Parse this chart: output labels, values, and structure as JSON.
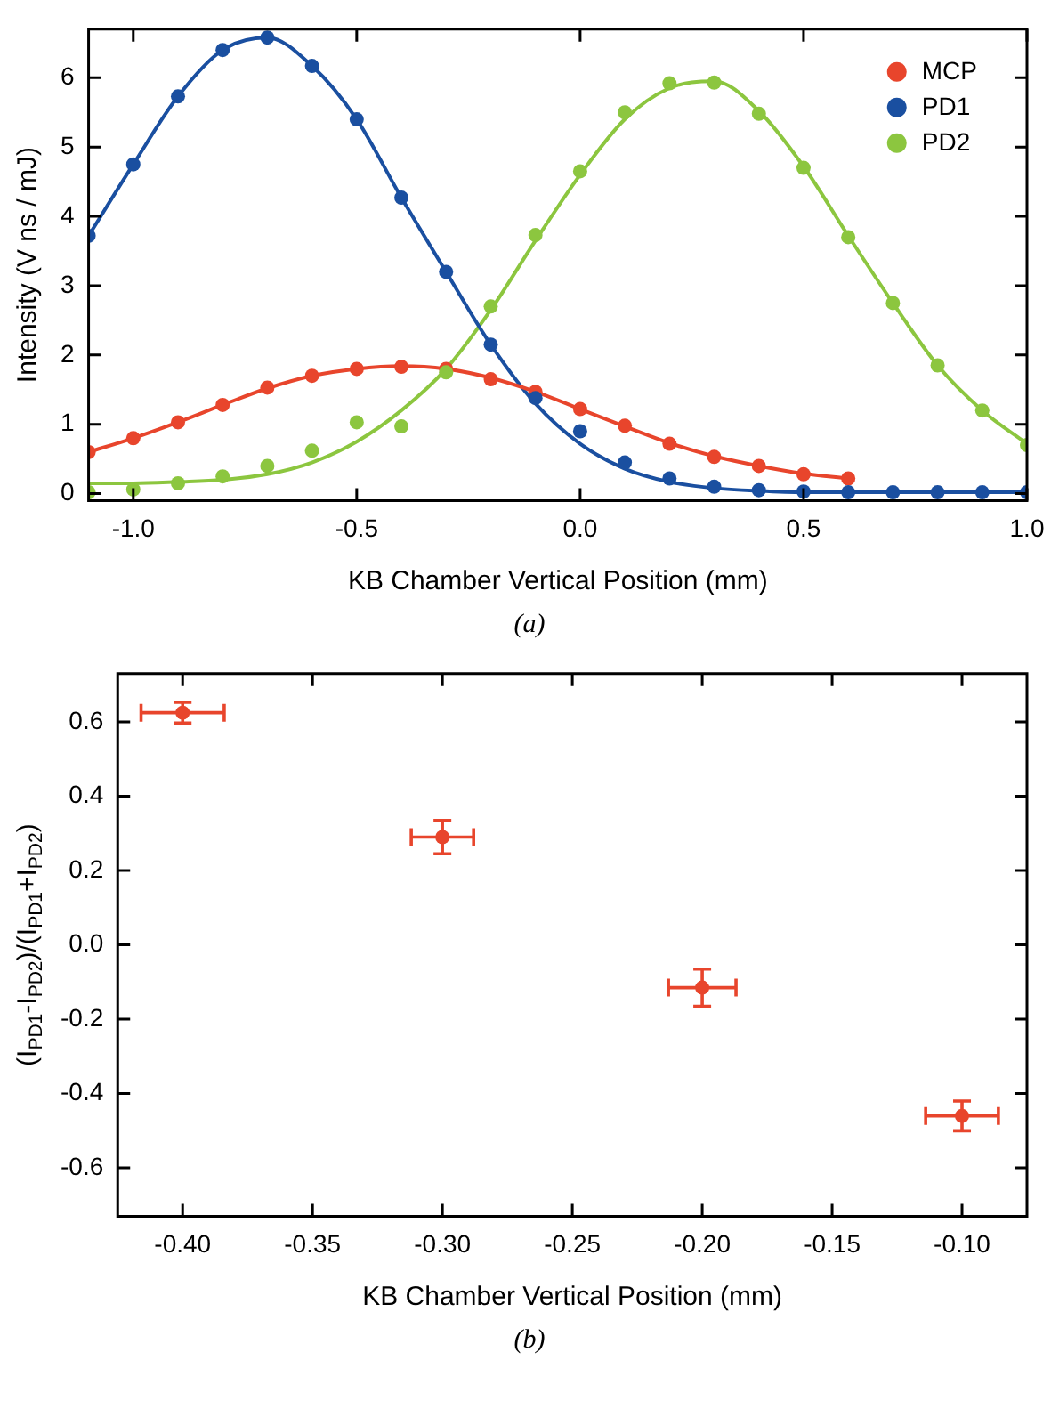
{
  "chart_data": [
    {
      "type": "scatter",
      "xlabel": "KB Chamber Vertical Position (mm)",
      "ylabel": "Intensity (V ns / mJ)",
      "annotations": [
        "(a)"
      ],
      "legend": "top right",
      "grid": false,
      "marker": "circle",
      "xlim": [
        -1.1,
        1.0
      ],
      "xticks": [
        {
          "value": -1.0,
          "label": "-1.0"
        },
        {
          "value": -0.5,
          "label": "-0.5"
        },
        {
          "value": 0,
          "label": "0.0"
        },
        {
          "value": 0.5,
          "label": "0.5"
        },
        {
          "value": 1.0,
          "label": "1.0"
        }
      ],
      "ylim": [
        -0.1,
        6.7
      ],
      "yticks": [
        0,
        1,
        2,
        3,
        4,
        5,
        6
      ],
      "series": [
        {
          "name": "MCP",
          "color": "#e8452c",
          "x": [
            -1.1,
            -1.0,
            -0.9,
            -0.8,
            -0.7,
            -0.6,
            -0.5,
            -0.4,
            -0.3,
            -0.2,
            -0.1,
            0.0,
            0.1,
            0.2,
            0.3,
            0.4,
            0.5,
            0.6
          ],
          "values": [
            0.6,
            0.8,
            1.03,
            1.28,
            1.53,
            1.7,
            1.8,
            1.83,
            1.8,
            1.65,
            1.47,
            1.22,
            0.98,
            0.72,
            0.53,
            0.4,
            0.28,
            0.22
          ]
        },
        {
          "name": "PD1",
          "color": "#1a4fa0",
          "x": [
            -1.1,
            -1.0,
            -0.9,
            -0.8,
            -0.7,
            -0.6,
            -0.5,
            -0.4,
            -0.3,
            -0.2,
            -0.1,
            0.0,
            0.1,
            0.2,
            0.3,
            0.4,
            0.5,
            0.6,
            0.7,
            0.8,
            0.9,
            1.0
          ],
          "values": [
            3.72,
            4.75,
            5.73,
            6.4,
            6.58,
            6.17,
            5.4,
            4.27,
            3.2,
            2.15,
            1.38,
            0.9,
            0.45,
            0.22,
            0.1,
            0.05,
            0.03,
            0.02,
            0.02,
            0.02,
            0.02,
            0.02
          ]
        },
        {
          "name": "PD2",
          "color": "#8cc63f",
          "x": [
            -1.1,
            -1.0,
            -0.9,
            -0.8,
            -0.7,
            -0.6,
            -0.5,
            -0.4,
            -0.3,
            -0.2,
            -0.1,
            0.0,
            0.1,
            0.2,
            0.3,
            0.4,
            0.5,
            0.6,
            0.7,
            0.8,
            0.9,
            1.0
          ],
          "values": [
            0.02,
            0.06,
            0.15,
            0.25,
            0.4,
            0.62,
            1.03,
            0.97,
            1.75,
            2.7,
            3.73,
            4.65,
            5.5,
            5.92,
            5.93,
            5.48,
            4.7,
            3.7,
            2.75,
            1.85,
            1.2,
            0.7
          ]
        },
        {
          "type": "line",
          "marker": "none",
          "color": "#e8452c",
          "x": [
            -1.1,
            -1.0,
            -0.9,
            -0.8,
            -0.7,
            -0.6,
            -0.5,
            -0.4,
            -0.3,
            -0.2,
            -0.1,
            0.0,
            0.1,
            0.2,
            0.3,
            0.4,
            0.5,
            0.6
          ],
          "values": [
            0.6,
            0.8,
            1.03,
            1.28,
            1.52,
            1.7,
            1.8,
            1.84,
            1.8,
            1.67,
            1.47,
            1.22,
            0.97,
            0.73,
            0.54,
            0.4,
            0.29,
            0.22
          ]
        },
        {
          "type": "line",
          "marker": "none",
          "color": "#1a4fa0",
          "x": [
            -1.1,
            -1.0,
            -0.9,
            -0.8,
            -0.7,
            -0.6,
            -0.5,
            -0.4,
            -0.3,
            -0.2,
            -0.1,
            0.0,
            0.1,
            0.2,
            0.3,
            0.4,
            0.5,
            0.6,
            0.7,
            0.8,
            0.9,
            1.0
          ],
          "values": [
            3.72,
            4.75,
            5.73,
            6.4,
            6.58,
            6.17,
            5.4,
            4.27,
            3.2,
            2.15,
            1.3,
            0.72,
            0.36,
            0.17,
            0.08,
            0.04,
            0.02,
            0.02,
            0.02,
            0.02,
            0.02,
            0.02
          ]
        },
        {
          "type": "line",
          "marker": "none",
          "color": "#8cc63f",
          "x": [
            -1.1,
            -1.0,
            -0.9,
            -0.8,
            -0.7,
            -0.6,
            -0.5,
            -0.4,
            -0.3,
            -0.2,
            -0.1,
            0.0,
            0.1,
            0.2,
            0.3,
            0.4,
            0.5,
            0.6,
            0.7,
            0.8,
            0.9,
            1.0
          ],
          "values": [
            0.15,
            0.15,
            0.17,
            0.2,
            0.28,
            0.45,
            0.75,
            1.2,
            1.8,
            2.65,
            3.65,
            4.6,
            5.4,
            5.85,
            5.95,
            5.52,
            4.72,
            3.72,
            2.75,
            1.85,
            1.2,
            0.72
          ]
        }
      ]
    },
    {
      "type": "scatter",
      "xlabel": "KB Chamber Vertical Position (mm)",
      "ylabel": "(I$_{PD1}$-I$_{PD2}$)/(I$_{PD1}$+I$_{PD2}$)",
      "annotations": [
        "(b)"
      ],
      "grid": false,
      "marker": "circle",
      "xlim": [
        -0.425,
        -0.075
      ],
      "xticks": [
        {
          "value": -0.4,
          "label": "-0.40"
        },
        {
          "value": -0.35,
          "label": "-0.35"
        },
        {
          "value": -0.3,
          "label": "-0.30"
        },
        {
          "value": -0.25,
          "label": "-0.25"
        },
        {
          "value": -0.2,
          "label": "-0.20"
        },
        {
          "value": -0.15,
          "label": "-0.15"
        },
        {
          "value": -0.1,
          "label": "-0.10"
        }
      ],
      "ylim": [
        -0.73,
        0.73
      ],
      "yticks": [
        {
          "value": -0.6,
          "label": "-0.6"
        },
        {
          "value": -0.4,
          "label": "-0.4"
        },
        {
          "value": -0.2,
          "label": "-0.2"
        },
        {
          "value": 0,
          "label": "0.0"
        },
        {
          "value": 0.2,
          "label": "0.2"
        },
        {
          "value": 0.4,
          "label": "0.4"
        },
        {
          "value": 0.6,
          "label": "0.6"
        }
      ],
      "series": [
        {
          "color": "#e8452c",
          "x": [
            -0.4,
            -0.3,
            -0.2,
            -0.1
          ],
          "values": [
            0.625,
            0.29,
            -0.115,
            -0.46
          ],
          "errors": [
            0.028,
            0.045,
            0.05,
            0.04
          ],
          "xerrors": [
            0.016,
            0.012,
            0.013,
            0.014
          ]
        }
      ]
    }
  ]
}
